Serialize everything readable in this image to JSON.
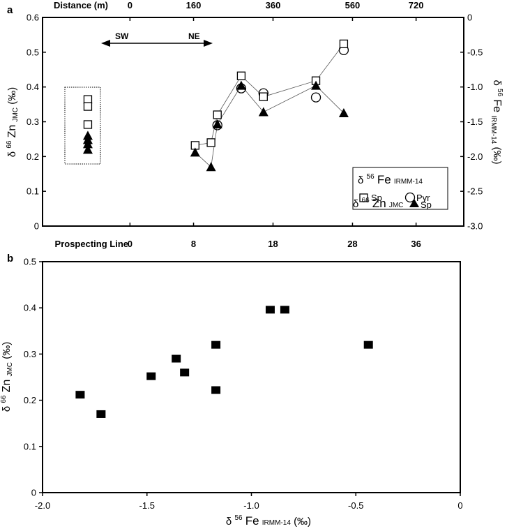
{
  "chart_data": [
    {
      "type": "scatter",
      "panel_label": "a",
      "top_axis": {
        "label": "Distance (m)",
        "ticks": [
          0,
          160,
          360,
          560,
          720
        ],
        "tick_labels": [
          "0",
          "160",
          "360",
          "560",
          "720"
        ]
      },
      "bottom_axis": {
        "label": "Prospecting Line",
        "ticks": [
          0,
          8,
          18,
          28,
          36
        ],
        "tick_labels": [
          "0",
          "8",
          "18",
          "28",
          "36"
        ],
        "xlim": [
          -11,
          42
        ]
      },
      "left_axis": {
        "label_parts": {
          "delta": "δ",
          "sup": "66",
          "base": "Zn",
          "sub": "JMC",
          "unit": "(‰)"
        },
        "ylim": [
          0,
          0.6
        ],
        "ticks": [
          0,
          0.1,
          0.2,
          0.3,
          0.4,
          0.5,
          0.6
        ],
        "tick_labels": [
          "0",
          "0.1",
          "0.2",
          "0.3",
          "0.4",
          "0.5",
          "0.6"
        ]
      },
      "right_axis": {
        "label_parts": {
          "delta": "δ",
          "sup": "56",
          "base": "Fe",
          "sub": "IRMM-14",
          "unit": "(‰)"
        },
        "ylim": [
          -3.0,
          0
        ],
        "ticks": [
          0,
          -0.5,
          -1.0,
          -1.5,
          -2.0,
          -2.5,
          -3.0
        ],
        "tick_labels": [
          "0",
          "-0.5",
          "-1.0",
          "-1.5",
          "-2.0",
          "-2.5",
          "-3.0"
        ]
      },
      "annotation": {
        "left": "SW",
        "right": "NE"
      },
      "legend": {
        "position": "bottom-right",
        "fe_title": {
          "delta": "δ",
          "sup": "56",
          "base": "Fe",
          "sub": "IRMM-14"
        },
        "sp_label": "Sp",
        "pyr_label": "Pyr",
        "zn_title": {
          "delta": "δ",
          "sup": "66",
          "base": "Zn",
          "sub": "JMC"
        },
        "zn_sp_label": "Sp"
      },
      "series": [
        {
          "name": "Fe Sp",
          "marker": "open-square",
          "axis": "right",
          "connected": true,
          "points": [
            [
              8.2,
              -1.84
            ],
            [
              10.2,
              -1.8
            ],
            [
              11,
              -1.4
            ],
            [
              14,
              -0.84
            ],
            [
              16.8,
              -1.14
            ],
            [
              23.4,
              -0.91
            ],
            [
              26.9,
              -0.38
            ]
          ]
        },
        {
          "name": "Fe Pyr",
          "marker": "open-circle",
          "axis": "right",
          "connected": false,
          "points": [
            [
              11,
              -1.55
            ],
            [
              14,
              -1.02
            ],
            [
              16.8,
              -1.09
            ],
            [
              23.4,
              -1.15
            ],
            [
              26.9,
              -0.47
            ]
          ]
        },
        {
          "name": "Zn Sp",
          "marker": "filled-triangle",
          "axis": "left",
          "connected": true,
          "points": [
            [
              8.2,
              0.212
            ],
            [
              10.2,
              0.17
            ],
            [
              11,
              0.293
            ],
            [
              14,
              0.404
            ],
            [
              16.8,
              0.328
            ],
            [
              23.4,
              0.404
            ],
            [
              26.9,
              0.325
            ]
          ]
        },
        {
          "name": "Inset Fe Sp",
          "marker": "open-square",
          "axis": "right",
          "connected": false,
          "points": [
            [
              -5.3,
              -1.18
            ],
            [
              -5.3,
              -1.28
            ],
            [
              -5.3,
              -1.54
            ]
          ]
        },
        {
          "name": "Inset Zn Sp",
          "marker": "filled-triangle",
          "axis": "left",
          "connected": false,
          "points": [
            [
              -5.3,
              0.26
            ],
            [
              -5.3,
              0.248
            ],
            [
              -5.3,
              0.236
            ],
            [
              -5.3,
              0.22
            ]
          ]
        }
      ]
    },
    {
      "type": "scatter",
      "panel_label": "b",
      "xlabel_parts": {
        "delta": "δ",
        "sup": "56",
        "base": "Fe",
        "sub": "IRMM-14",
        "unit": "(‰)"
      },
      "ylabel_parts": {
        "delta": "δ",
        "sup": "66",
        "base": "Zn",
        "sub": "JMC",
        "unit": "(‰)"
      },
      "xlim": [
        -2.0,
        0
      ],
      "ylim": [
        0,
        0.5
      ],
      "xticks": [
        -2.0,
        -1.5,
        -1.0,
        -0.5,
        0
      ],
      "xtick_labels": [
        "-2.0",
        "-1.5",
        "-1.0",
        "-0.5",
        "0"
      ],
      "yticks": [
        0,
        0.1,
        0.2,
        0.3,
        0.4,
        0.5
      ],
      "ytick_labels": [
        "0",
        "0.1",
        "0.2",
        "0.3",
        "0.4",
        "0.5"
      ],
      "marker": "filled-square",
      "points": [
        [
          -1.82,
          0.212
        ],
        [
          -1.72,
          0.17
        ],
        [
          -1.48,
          0.252
        ],
        [
          -1.36,
          0.29
        ],
        [
          -1.32,
          0.26
        ],
        [
          -1.17,
          0.32
        ],
        [
          -1.17,
          0.222
        ],
        [
          -0.91,
          0.396
        ],
        [
          -0.84,
          0.396
        ],
        [
          -0.44,
          0.32
        ]
      ]
    }
  ]
}
